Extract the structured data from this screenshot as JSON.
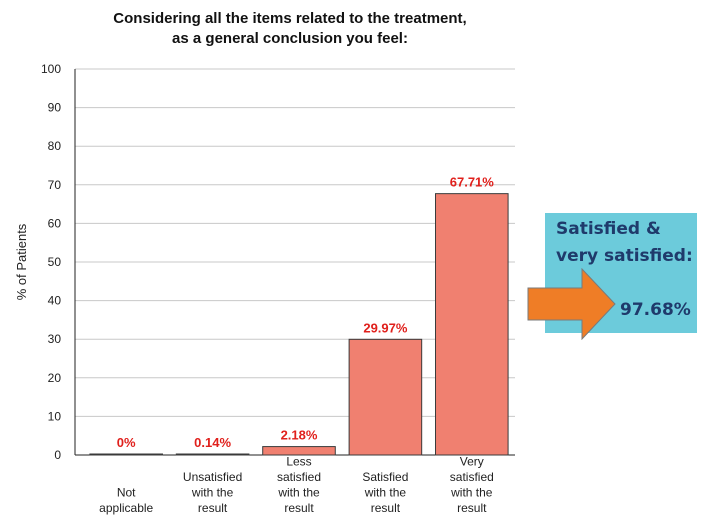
{
  "chart_data": {
    "type": "bar",
    "title_lines": [
      "Considering all the items related to the treatment,",
      "as a general conclusion you feel:"
    ],
    "ylabel": "% of Patients",
    "xlabel": "",
    "ylim": [
      0,
      100
    ],
    "yticks": [
      0,
      10,
      20,
      30,
      40,
      50,
      60,
      70,
      80,
      90,
      100
    ],
    "grid": true,
    "categories": [
      [
        "Not",
        "applicable"
      ],
      [
        "Unsatisfied",
        "with the",
        "result"
      ],
      [
        "Less",
        "satisfied",
        "with the",
        "result"
      ],
      [
        "Satisfied",
        "with the",
        "result"
      ],
      [
        "Very",
        "satisfied",
        "with the",
        "result"
      ]
    ],
    "values": [
      0,
      0.14,
      2.18,
      29.97,
      67.71
    ],
    "data_labels": [
      "0%",
      "0.14%",
      "2.18%",
      "29.97%",
      "67.71%"
    ],
    "bar_color": "#f08070",
    "label_color": "#e0201c"
  },
  "callout": {
    "line1": "Satisfied &",
    "line2": "very satisfied:",
    "value": "97.68%",
    "box_color": "#6ccbdb",
    "arrow_color": "#ef7d26",
    "text_color": "#1f3a6b"
  }
}
